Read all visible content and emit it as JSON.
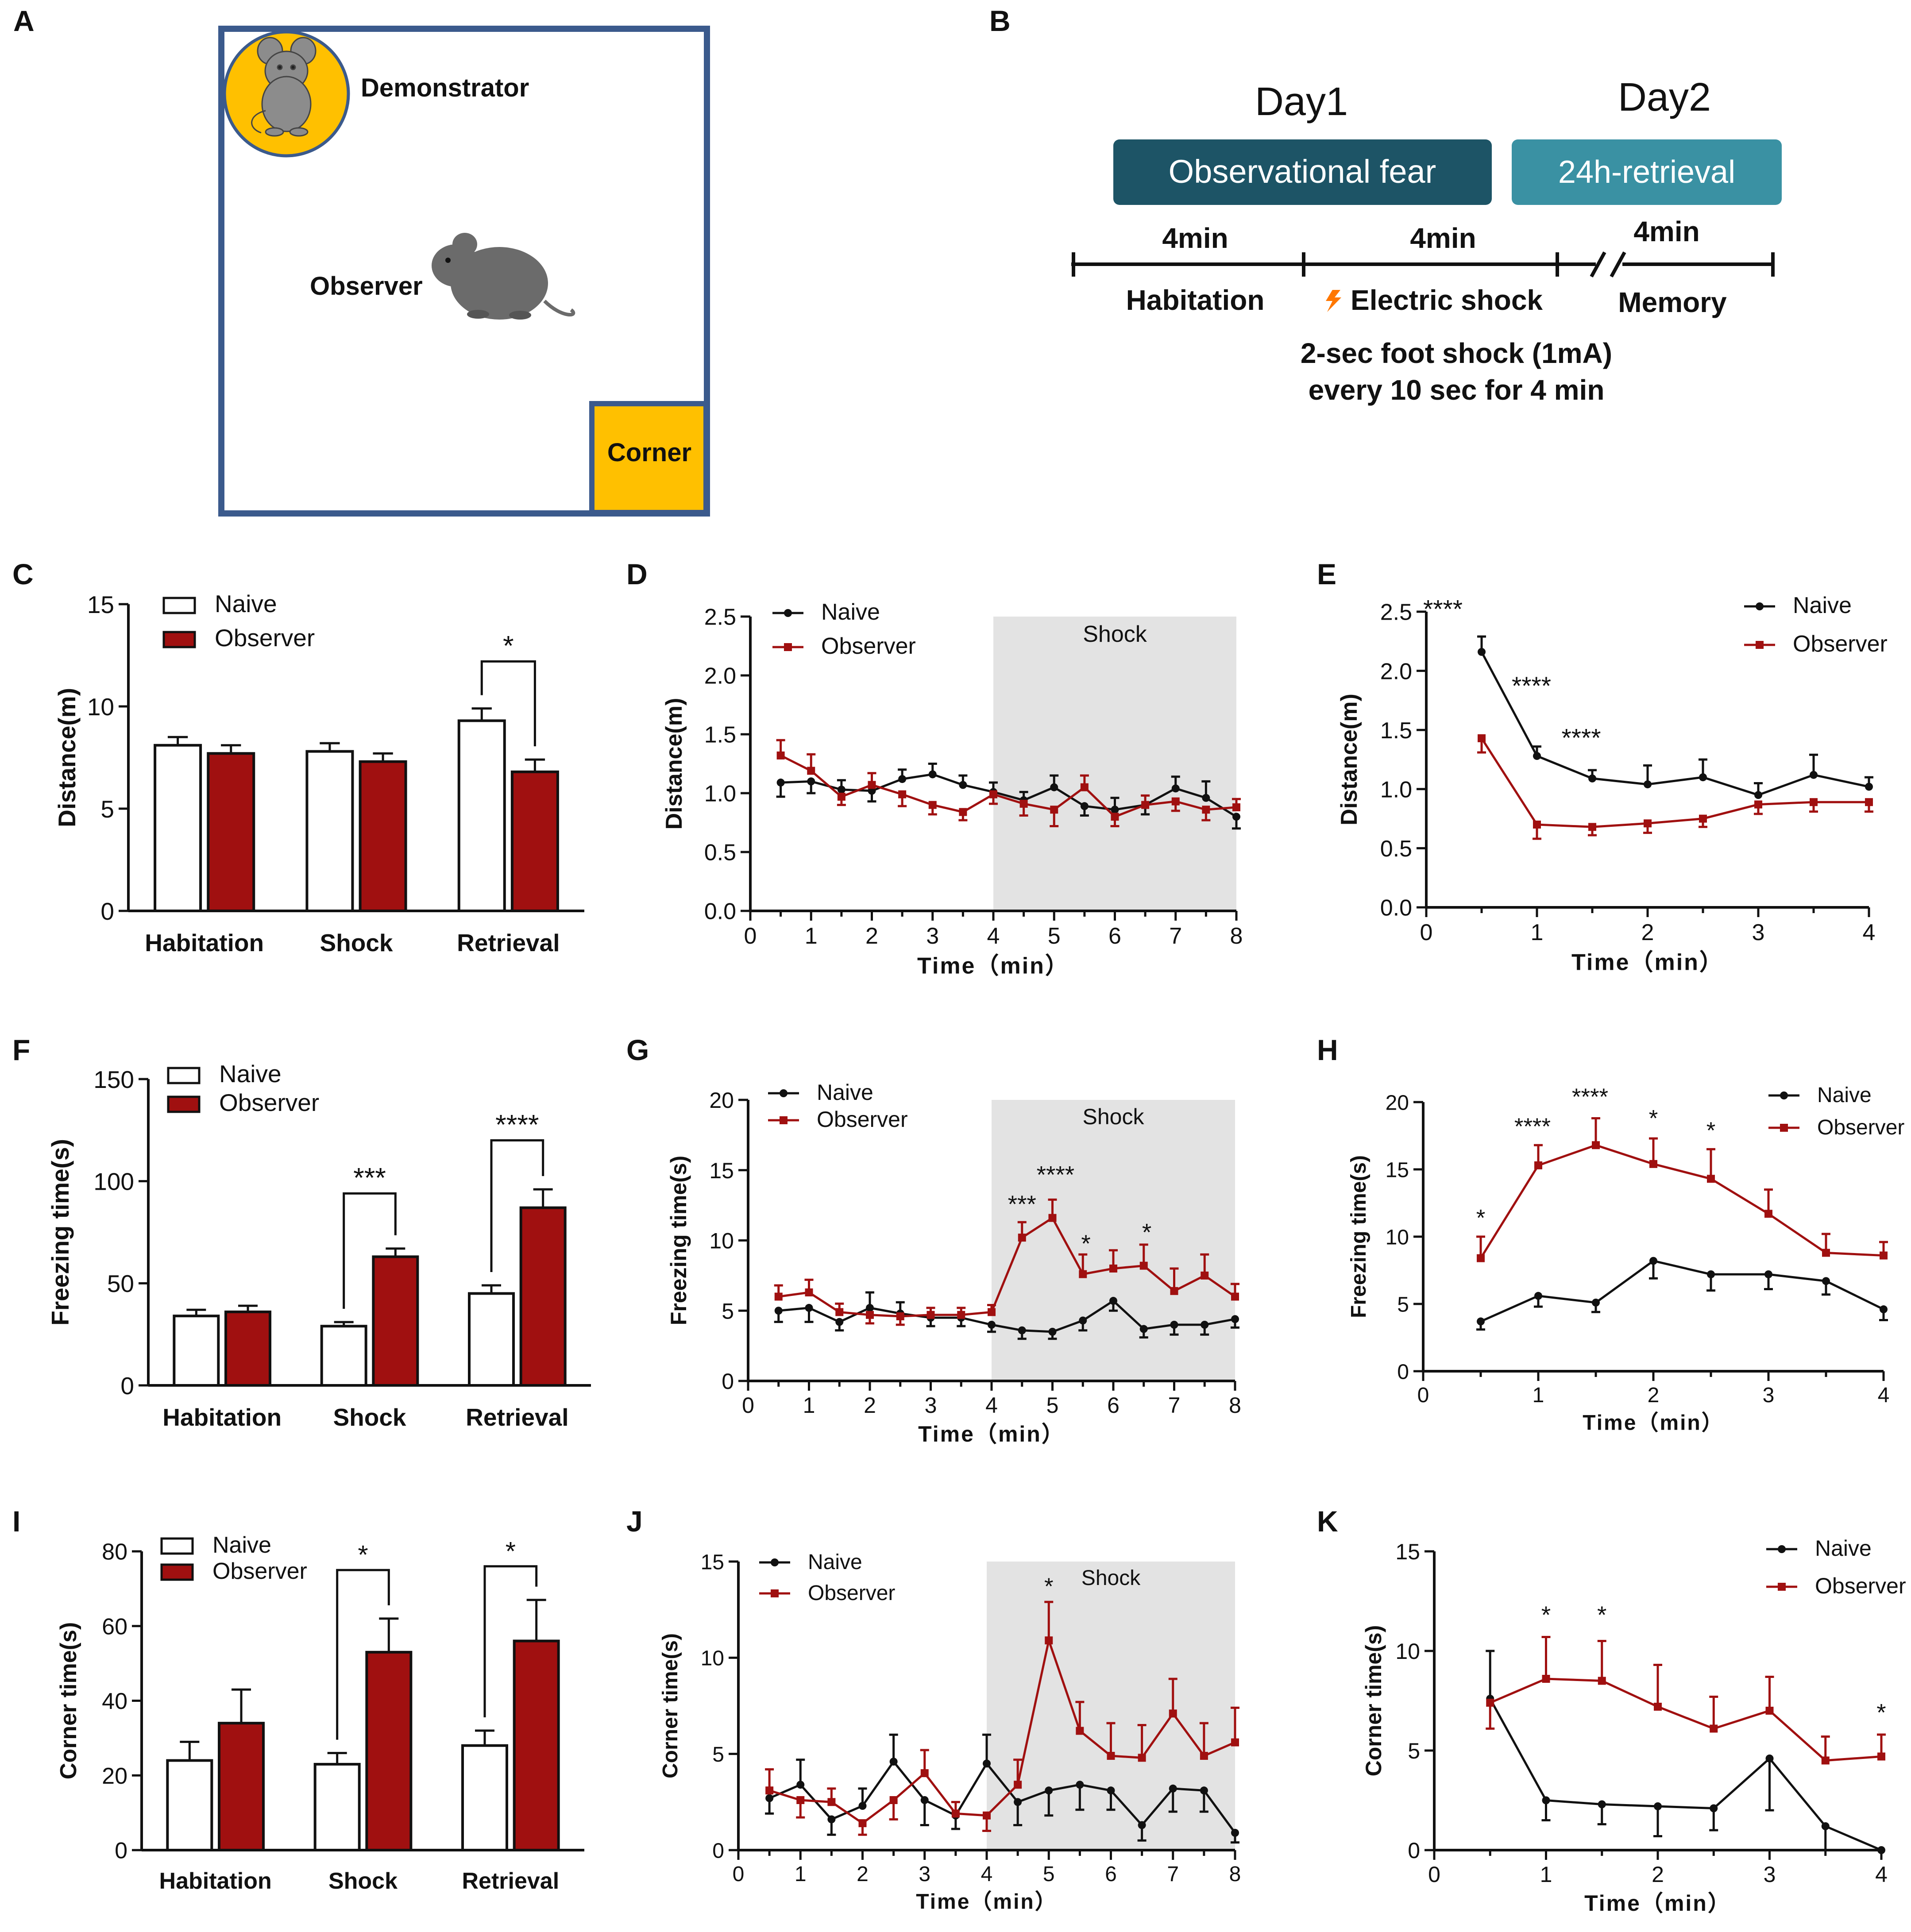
{
  "panel_a": {
    "letter": "A",
    "demonstrator_label": "Demonstrator",
    "observer_label": "Observer",
    "corner_label": "Corner",
    "colors": {
      "border": "#3b5a8c",
      "gold": "#ffc000",
      "mouse": "#6b6b6b"
    }
  },
  "panel_b": {
    "letter": "B",
    "day1": "Day1",
    "day2": "Day2",
    "box1": "Observational fear",
    "box2": "24h-retrieval",
    "seg1_duration": "4min",
    "seg2_duration": "4min",
    "seg3_duration": "4min",
    "seg1_label": "Habitation",
    "seg2_label": "Electric shock",
    "seg3_label": "Memory",
    "note_line1": "2-sec foot shock (1mA)",
    "note_line2": "every 10 sec for 4 min",
    "colors": {
      "box1": "#1d5466",
      "box2": "#3a91a3",
      "bolt": "#ff7700"
    }
  },
  "colors": {
    "naive": "#111111",
    "observer": "#a01010",
    "shock_region": "#e3e3e3"
  },
  "chart_data": [
    {
      "id": "C",
      "type": "bar",
      "letter": "C",
      "ylabel": "Distance(m)",
      "xlabel": "",
      "categories": [
        "Habitation",
        "Shock",
        "Retrieval"
      ],
      "ylim": [
        0,
        15
      ],
      "yticks": [
        0,
        5,
        10,
        15
      ],
      "legend": {
        "position": "top-left",
        "entries": [
          "Naive",
          "Observer"
        ]
      },
      "series": [
        {
          "name": "Naive",
          "values": [
            8.1,
            7.8,
            9.3
          ],
          "errors": [
            0.4,
            0.4,
            0.6
          ]
        },
        {
          "name": "Observer",
          "values": [
            7.7,
            7.3,
            6.8
          ],
          "errors": [
            0.4,
            0.4,
            0.6
          ]
        }
      ],
      "significance": [
        {
          "category": 2,
          "label": "*",
          "level": 12.2
        }
      ]
    },
    {
      "id": "D",
      "type": "line",
      "letter": "D",
      "ylabel": "Distance(m)",
      "xlabel": "Time（min）",
      "xlim": [
        0,
        8
      ],
      "ylim": [
        0,
        2.5
      ],
      "xticks": [
        0,
        1,
        2,
        3,
        4,
        5,
        6,
        7,
        8
      ],
      "yticks": [
        0.0,
        0.5,
        1.0,
        1.5,
        2.0,
        2.5
      ],
      "ytick_labels": [
        "0.0",
        "0.5",
        "1.0",
        "1.5",
        "2.0",
        "2.5"
      ],
      "shaded": {
        "from": 4,
        "to": 8,
        "label": "Shock"
      },
      "legend": {
        "position": "top-left",
        "entries": [
          "Naive",
          "Observer"
        ]
      },
      "x": [
        0.5,
        1,
        1.5,
        2,
        2.5,
        3,
        3.5,
        4,
        4.5,
        5,
        5.5,
        6,
        6.5,
        7,
        7.5,
        8
      ],
      "series": [
        {
          "name": "Naive",
          "values": [
            1.09,
            1.1,
            1.03,
            1.02,
            1.12,
            1.16,
            1.07,
            1.01,
            0.94,
            1.05,
            0.89,
            0.86,
            0.9,
            1.04,
            0.96,
            0.8
          ],
          "errors": [
            0.12,
            0.1,
            0.08,
            0.09,
            0.08,
            0.09,
            0.08,
            0.08,
            0.07,
            0.1,
            0.08,
            0.1,
            0.08,
            0.1,
            0.14,
            0.1
          ]
        },
        {
          "name": "Observer",
          "values": [
            1.32,
            1.19,
            0.97,
            1.07,
            0.99,
            0.9,
            0.84,
            0.99,
            0.91,
            0.86,
            1.05,
            0.8,
            0.9,
            0.93,
            0.86,
            0.88
          ],
          "errors": [
            0.13,
            0.14,
            0.07,
            0.1,
            0.1,
            0.08,
            0.07,
            0.08,
            0.1,
            0.14,
            0.1,
            0.08,
            0.08,
            0.08,
            0.09,
            0.07
          ]
        }
      ],
      "annotations": []
    },
    {
      "id": "E",
      "type": "line",
      "letter": "E",
      "ylabel": "Distance(m)",
      "xlabel": "Time（min）",
      "xlim": [
        0,
        4
      ],
      "ylim": [
        0,
        2.5
      ],
      "xticks": [
        0,
        1,
        2,
        3,
        4
      ],
      "yticks": [
        0.0,
        0.5,
        1.0,
        1.5,
        2.0,
        2.5
      ],
      "ytick_labels": [
        "0.0",
        "0.5",
        "1.0",
        "1.5",
        "2.0",
        "2.5"
      ],
      "legend": {
        "position": "top-right",
        "entries": [
          "Naive",
          "Observer"
        ]
      },
      "x": [
        0.5,
        1,
        1.5,
        2,
        2.5,
        3,
        3.5,
        4
      ],
      "series": [
        {
          "name": "Naive",
          "values": [
            2.16,
            1.28,
            1.09,
            1.04,
            1.1,
            0.95,
            1.12,
            1.02
          ],
          "errors": [
            0.13,
            0.08,
            0.07,
            0.16,
            0.15,
            0.1,
            0.17,
            0.08
          ]
        },
        {
          "name": "Observer",
          "values": [
            1.43,
            0.7,
            0.68,
            0.71,
            0.75,
            0.87,
            0.89,
            0.89
          ],
          "errors": [
            0.12,
            0.12,
            0.07,
            0.08,
            0.07,
            0.08,
            0.08,
            0.08
          ]
        }
      ],
      "annotations": [
        {
          "x": 0.15,
          "y": 2.45,
          "label": "****"
        },
        {
          "x": 0.95,
          "y": 1.8,
          "label": "****"
        },
        {
          "x": 1.4,
          "y": 1.36,
          "label": "****"
        }
      ]
    },
    {
      "id": "F",
      "type": "bar",
      "letter": "F",
      "ylabel": "Freezing time(s)",
      "xlabel": "",
      "categories": [
        "Habitation",
        "Shock",
        "Retrieval"
      ],
      "ylim": [
        0,
        150
      ],
      "yticks": [
        0,
        50,
        100,
        150
      ],
      "legend": {
        "position": "top-left",
        "entries": [
          "Naive",
          "Observer"
        ]
      },
      "series": [
        {
          "name": "Naive",
          "values": [
            34,
            29,
            45
          ],
          "errors": [
            3,
            2,
            4
          ]
        },
        {
          "name": "Observer",
          "values": [
            36,
            63,
            87
          ],
          "errors": [
            3,
            4,
            9
          ]
        }
      ],
      "significance": [
        {
          "category": 1,
          "label": "***",
          "level": 94
        },
        {
          "category": 2,
          "label": "****",
          "level": 120
        }
      ]
    },
    {
      "id": "G",
      "type": "line",
      "letter": "G",
      "ylabel": "Freezing time(s)",
      "xlabel": "Time（min）",
      "xlim": [
        0,
        8
      ],
      "ylim": [
        0,
        20
      ],
      "xticks": [
        0,
        1,
        2,
        3,
        4,
        5,
        6,
        7,
        8
      ],
      "yticks": [
        0,
        5,
        10,
        15,
        20
      ],
      "ytick_labels": [
        "0",
        "5",
        "10",
        "15",
        "20"
      ],
      "shaded": {
        "from": 4,
        "to": 8,
        "label": "Shock"
      },
      "legend": {
        "position": "top-left",
        "entries": [
          "Naive",
          "Observer"
        ]
      },
      "x": [
        0.5,
        1,
        1.5,
        2,
        2.5,
        3,
        3.5,
        4,
        4.5,
        5,
        5.5,
        6,
        6.5,
        7,
        7.5,
        8
      ],
      "series": [
        {
          "name": "Naive",
          "values": [
            5.0,
            5.2,
            4.2,
            5.2,
            4.8,
            4.5,
            4.5,
            4.0,
            3.6,
            3.5,
            4.3,
            5.7,
            3.7,
            4.0,
            4.0,
            4.4
          ],
          "errors": [
            0.8,
            1.0,
            0.6,
            1.1,
            0.8,
            0.6,
            0.6,
            0.5,
            0.6,
            0.5,
            0.7,
            0.7,
            0.6,
            0.7,
            0.7,
            0.6
          ]
        },
        {
          "name": "Observer",
          "values": [
            6.0,
            6.3,
            4.9,
            4.7,
            4.6,
            4.7,
            4.7,
            4.9,
            10.2,
            11.6,
            7.6,
            8.0,
            8.2,
            6.4,
            7.5,
            6.0
          ],
          "errors": [
            0.8,
            0.9,
            0.6,
            0.6,
            0.6,
            0.5,
            0.5,
            0.5,
            1.1,
            1.3,
            1.4,
            1.3,
            1.5,
            1.6,
            1.5,
            0.9
          ]
        }
      ],
      "annotations": [
        {
          "x": 4.5,
          "y": 12.0,
          "label": "***"
        },
        {
          "x": 5.05,
          "y": 14.1,
          "label": "****"
        },
        {
          "x": 5.55,
          "y": 9.2,
          "label": "*"
        },
        {
          "x": 6.55,
          "y": 10.0,
          "label": "*"
        }
      ]
    },
    {
      "id": "H",
      "type": "line",
      "letter": "H",
      "ylabel": "Freezing time(s)",
      "xlabel": "Time（min）",
      "xlim": [
        0,
        4
      ],
      "ylim": [
        0,
        20
      ],
      "xticks": [
        0,
        1,
        2,
        3,
        4
      ],
      "yticks": [
        0,
        5,
        10,
        15,
        20
      ],
      "ytick_labels": [
        "0",
        "5",
        "10",
        "15",
        "20"
      ],
      "legend": {
        "position": "top-right",
        "entries": [
          "Naive",
          "Observer"
        ]
      },
      "x": [
        0.5,
        1,
        1.5,
        2,
        2.5,
        3,
        3.5,
        4
      ],
      "series": [
        {
          "name": "Naive",
          "values": [
            3.7,
            5.6,
            5.1,
            8.2,
            7.2,
            7.2,
            6.7,
            4.6
          ],
          "errors": [
            0.6,
            0.8,
            0.7,
            1.3,
            1.2,
            1.1,
            1.0,
            0.8
          ]
        },
        {
          "name": "Observer",
          "values": [
            8.4,
            15.3,
            16.8,
            15.4,
            14.3,
            11.7,
            8.8,
            8.6
          ],
          "errors": [
            1.6,
            1.5,
            2.0,
            1.9,
            2.2,
            1.8,
            1.4,
            1.0
          ]
        }
      ],
      "annotations": [
        {
          "x": 0.5,
          "y": 10.8,
          "label": "*"
        },
        {
          "x": 0.95,
          "y": 17.6,
          "label": "****"
        },
        {
          "x": 1.45,
          "y": 19.8,
          "label": "****"
        },
        {
          "x": 2.0,
          "y": 18.2,
          "label": "*"
        },
        {
          "x": 2.5,
          "y": 17.3,
          "label": "*"
        }
      ]
    },
    {
      "id": "I",
      "type": "bar",
      "letter": "I",
      "ylabel": "Corner  time(s)",
      "xlabel": "",
      "categories": [
        "Habitation",
        "Shock",
        "Retrieval"
      ],
      "ylim": [
        0,
        80
      ],
      "yticks": [
        0,
        20,
        40,
        60,
        80
      ],
      "legend": {
        "position": "top-left",
        "entries": [
          "Naive",
          "Observer"
        ]
      },
      "series": [
        {
          "name": "Naive",
          "values": [
            24,
            23,
            28
          ],
          "errors": [
            5,
            3,
            4
          ]
        },
        {
          "name": "Observer",
          "values": [
            34,
            53,
            56
          ],
          "errors": [
            9,
            9,
            11
          ]
        }
      ],
      "significance": [
        {
          "category": 1,
          "label": "*",
          "level": 75
        },
        {
          "category": 2,
          "label": "*",
          "level": 76
        }
      ]
    },
    {
      "id": "J",
      "type": "line",
      "letter": "J",
      "ylabel": "Corner  time(s)",
      "xlabel": "Time（min）",
      "xlim": [
        0,
        8
      ],
      "ylim": [
        0,
        15
      ],
      "xticks": [
        0,
        1,
        2,
        3,
        4,
        5,
        6,
        7,
        8
      ],
      "yticks": [
        0,
        5,
        10,
        15
      ],
      "ytick_labels": [
        "0",
        "5",
        "10",
        "15"
      ],
      "shaded": {
        "from": 4,
        "to": 8,
        "label": "Shock"
      },
      "legend": {
        "position": "top-left",
        "entries": [
          "Naive",
          "Observer"
        ]
      },
      "x": [
        0.5,
        1,
        1.5,
        2,
        2.5,
        3,
        3.5,
        4,
        4.5,
        5,
        5.5,
        6,
        6.5,
        7,
        7.5,
        8
      ],
      "series": [
        {
          "name": "Naive",
          "values": [
            2.7,
            3.4,
            1.6,
            2.3,
            4.6,
            2.6,
            1.8,
            4.5,
            2.5,
            3.1,
            3.4,
            3.1,
            1.3,
            3.2,
            3.1,
            0.9
          ],
          "errors": [
            0.8,
            1.3,
            0.8,
            0.9,
            1.4,
            1.3,
            0.7,
            1.5,
            1.2,
            1.3,
            1.3,
            1.0,
            0.8,
            1.2,
            1.1,
            0.5
          ]
        },
        {
          "name": "Observer",
          "values": [
            3.1,
            2.6,
            2.5,
            1.4,
            2.6,
            4.0,
            1.9,
            1.8,
            3.4,
            10.9,
            6.2,
            4.9,
            4.8,
            7.1,
            4.9,
            5.6
          ],
          "errors": [
            1.1,
            0.9,
            0.7,
            0.6,
            1.0,
            1.2,
            0.6,
            0.8,
            1.3,
            2.0,
            1.5,
            1.7,
            1.7,
            1.8,
            1.7,
            1.8
          ]
        }
      ],
      "annotations": [
        {
          "x": 5.0,
          "y": 13.3,
          "label": "*"
        }
      ]
    },
    {
      "id": "K",
      "type": "line",
      "letter": "K",
      "ylabel": "Corner time(s)",
      "xlabel": "Time（min）",
      "xlim": [
        0,
        4
      ],
      "ylim": [
        0,
        15
      ],
      "xticks": [
        0,
        1,
        2,
        3,
        4
      ],
      "yticks": [
        0,
        5,
        10,
        15
      ],
      "ytick_labels": [
        "0",
        "5",
        "10",
        "15"
      ],
      "legend": {
        "position": "top-right",
        "entries": [
          "Naive",
          "Observer"
        ]
      },
      "x": [
        0.5,
        1,
        1.5,
        2,
        2.5,
        3,
        3.5,
        4
      ],
      "series": [
        {
          "name": "Naive",
          "values": [
            7.6,
            2.5,
            2.3,
            2.2,
            2.1,
            4.6,
            1.2,
            0.0
          ],
          "errors": [
            2.4,
            1.0,
            1.0,
            1.5,
            1.1,
            2.6,
            1.2,
            0.0
          ]
        },
        {
          "name": "Observer",
          "values": [
            7.4,
            8.6,
            8.5,
            7.2,
            6.1,
            7.0,
            4.5,
            4.7
          ],
          "errors": [
            1.3,
            2.1,
            2.0,
            2.1,
            1.6,
            1.7,
            1.2,
            1.1
          ]
        }
      ],
      "annotations": [
        {
          "x": 1.0,
          "y": 11.4,
          "label": "*"
        },
        {
          "x": 1.5,
          "y": 11.4,
          "label": "*"
        },
        {
          "x": 4.0,
          "y": 6.5,
          "label": "*"
        }
      ]
    }
  ]
}
